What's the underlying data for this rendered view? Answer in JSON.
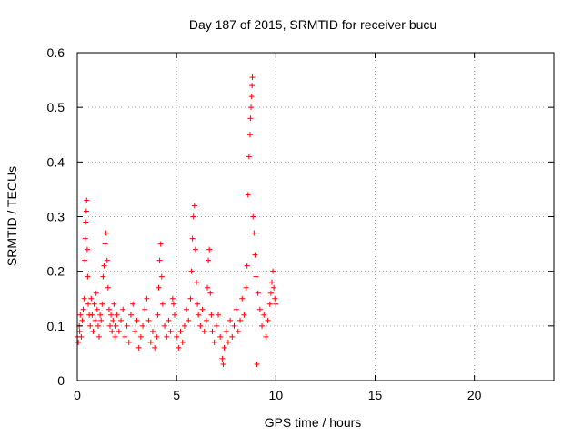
{
  "chart_data": {
    "type": "scatter",
    "title": "Day 187 of 2015, SRMTID for receiver bucu",
    "xlabel": "GPS time / hours",
    "ylabel": "SRMTID / TECUs",
    "xlim": [
      0,
      24
    ],
    "ylim": [
      0,
      0.6
    ],
    "xticks": [
      0,
      5,
      10,
      15,
      20
    ],
    "yticks": [
      0,
      0.1,
      0.2,
      0.3,
      0.4,
      0.5,
      0.6
    ],
    "grid": true,
    "marker": "+",
    "color": "#ff0000",
    "series": [
      {
        "values": [
          [
            0.0,
            0.08
          ],
          [
            0.05,
            0.07
          ],
          [
            0.1,
            0.1
          ],
          [
            0.12,
            0.09
          ],
          [
            0.15,
            0.12
          ],
          [
            0.2,
            0.08
          ],
          [
            0.25,
            0.11
          ],
          [
            0.3,
            0.13
          ],
          [
            0.35,
            0.15
          ],
          [
            0.38,
            0.22
          ],
          [
            0.4,
            0.26
          ],
          [
            0.42,
            0.29
          ],
          [
            0.45,
            0.31
          ],
          [
            0.47,
            0.33
          ],
          [
            0.5,
            0.24
          ],
          [
            0.52,
            0.19
          ],
          [
            0.55,
            0.14
          ],
          [
            0.6,
            0.12
          ],
          [
            0.65,
            0.1
          ],
          [
            0.7,
            0.15
          ],
          [
            0.75,
            0.12
          ],
          [
            0.8,
            0.09
          ],
          [
            0.85,
            0.14
          ],
          [
            0.9,
            0.11
          ],
          [
            0.95,
            0.16
          ],
          [
            1.0,
            0.13
          ],
          [
            1.05,
            0.1
          ],
          [
            1.1,
            0.08
          ],
          [
            1.15,
            0.12
          ],
          [
            1.2,
            0.11
          ],
          [
            1.25,
            0.14
          ],
          [
            1.3,
            0.19
          ],
          [
            1.35,
            0.21
          ],
          [
            1.4,
            0.25
          ],
          [
            1.45,
            0.27
          ],
          [
            1.5,
            0.22
          ],
          [
            1.55,
            0.17
          ],
          [
            1.6,
            0.13
          ],
          [
            1.65,
            0.1
          ],
          [
            1.7,
            0.12
          ],
          [
            1.75,
            0.09
          ],
          [
            1.8,
            0.11
          ],
          [
            1.85,
            0.14
          ],
          [
            1.9,
            0.08
          ],
          [
            1.95,
            0.1
          ],
          [
            2.0,
            0.12
          ],
          [
            2.1,
            0.09
          ],
          [
            2.2,
            0.11
          ],
          [
            2.3,
            0.13
          ],
          [
            2.4,
            0.08
          ],
          [
            2.5,
            0.1
          ],
          [
            2.6,
            0.07
          ],
          [
            2.7,
            0.12
          ],
          [
            2.8,
            0.14
          ],
          [
            2.9,
            0.09
          ],
          [
            3.0,
            0.11
          ],
          [
            3.1,
            0.06
          ],
          [
            3.2,
            0.08
          ],
          [
            3.3,
            0.1
          ],
          [
            3.4,
            0.13
          ],
          [
            3.5,
            0.15
          ],
          [
            3.6,
            0.11
          ],
          [
            3.7,
            0.07
          ],
          [
            3.8,
            0.09
          ],
          [
            3.9,
            0.06
          ],
          [
            4.0,
            0.08
          ],
          [
            4.05,
            0.12
          ],
          [
            4.1,
            0.17
          ],
          [
            4.15,
            0.22
          ],
          [
            4.2,
            0.25
          ],
          [
            4.25,
            0.19
          ],
          [
            4.3,
            0.14
          ],
          [
            4.4,
            0.1
          ],
          [
            4.5,
            0.08
          ],
          [
            4.6,
            0.11
          ],
          [
            4.7,
            0.09
          ],
          [
            4.8,
            0.15
          ],
          [
            4.85,
            0.14
          ],
          [
            4.9,
            0.12
          ],
          [
            5.0,
            0.08
          ],
          [
            5.1,
            0.06
          ],
          [
            5.2,
            0.09
          ],
          [
            5.3,
            0.07
          ],
          [
            5.4,
            0.1
          ],
          [
            5.5,
            0.13
          ],
          [
            5.6,
            0.11
          ],
          [
            5.7,
            0.15
          ],
          [
            5.75,
            0.2
          ],
          [
            5.8,
            0.26
          ],
          [
            5.85,
            0.3
          ],
          [
            5.9,
            0.32
          ],
          [
            5.95,
            0.24
          ],
          [
            6.0,
            0.18
          ],
          [
            6.05,
            0.14
          ],
          [
            6.1,
            0.12
          ],
          [
            6.2,
            0.1
          ],
          [
            6.3,
            0.13
          ],
          [
            6.4,
            0.09
          ],
          [
            6.5,
            0.11
          ],
          [
            6.55,
            0.17
          ],
          [
            6.6,
            0.22
          ],
          [
            6.65,
            0.24
          ],
          [
            6.7,
            0.16
          ],
          [
            6.75,
            0.12
          ],
          [
            6.8,
            0.09
          ],
          [
            6.9,
            0.07
          ],
          [
            7.0,
            0.1
          ],
          [
            7.1,
            0.12
          ],
          [
            7.2,
            0.08
          ],
          [
            7.3,
            0.04
          ],
          [
            7.35,
            0.03
          ],
          [
            7.4,
            0.06
          ],
          [
            7.5,
            0.09
          ],
          [
            7.6,
            0.07
          ],
          [
            7.7,
            0.11
          ],
          [
            7.8,
            0.08
          ],
          [
            7.9,
            0.1
          ],
          [
            8.0,
            0.13
          ],
          [
            8.1,
            0.09
          ],
          [
            8.2,
            0.11
          ],
          [
            8.3,
            0.15
          ],
          [
            8.4,
            0.12
          ],
          [
            8.5,
            0.17
          ],
          [
            8.55,
            0.21
          ],
          [
            8.6,
            0.34
          ],
          [
            8.65,
            0.41
          ],
          [
            8.7,
            0.45
          ],
          [
            8.72,
            0.48
          ],
          [
            8.75,
            0.5
          ],
          [
            8.78,
            0.52
          ],
          [
            8.8,
            0.54
          ],
          [
            8.82,
            0.555
          ],
          [
            8.85,
            0.3
          ],
          [
            8.9,
            0.27
          ],
          [
            8.95,
            0.23
          ],
          [
            9.0,
            0.19
          ],
          [
            9.05,
            0.03
          ],
          [
            9.1,
            0.16
          ],
          [
            9.2,
            0.13
          ],
          [
            9.3,
            0.1
          ],
          [
            9.4,
            0.12
          ],
          [
            9.5,
            0.08
          ],
          [
            9.6,
            0.11
          ],
          [
            9.7,
            0.14
          ],
          [
            9.75,
            0.16
          ],
          [
            9.8,
            0.18
          ],
          [
            9.85,
            0.2
          ],
          [
            9.9,
            0.17
          ],
          [
            9.95,
            0.15
          ],
          [
            10.0,
            0.14
          ]
        ]
      }
    ]
  }
}
